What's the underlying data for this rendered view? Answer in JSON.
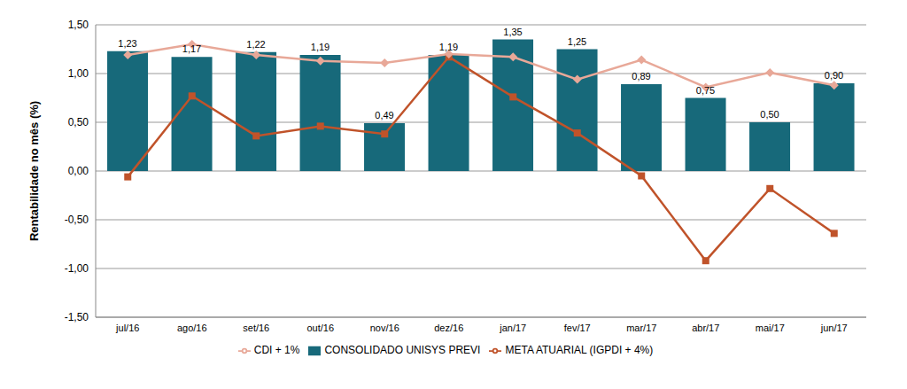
{
  "chart_data": {
    "type": "bar",
    "y_label": "Rentabilidade no mês (%)",
    "categories": [
      "jul/16",
      "ago/16",
      "set/16",
      "out/16",
      "nov/16",
      "dez/16",
      "jan/17",
      "fev/17",
      "mar/17",
      "abr/17",
      "mai/17",
      "jun/17"
    ],
    "series": [
      {
        "name": "CONSOLIDADO UNISYS PREVI",
        "type": "bar",
        "color": "#17697a",
        "data_labels": true,
        "values": [
          1.23,
          1.17,
          1.22,
          1.19,
          0.49,
          1.19,
          1.35,
          1.25,
          0.89,
          0.75,
          0.5,
          0.9
        ],
        "value_labels": [
          "1,23",
          "1,17",
          "1,22",
          "1,19",
          "0,49",
          "1,19",
          "1,35",
          "1,25",
          "0,89",
          "0,75",
          "0,50",
          "0,90"
        ]
      },
      {
        "name": "META ATUARIAL (IGPDI + 4%)",
        "type": "line",
        "color": "#c0532a",
        "marker": "square",
        "values": [
          -0.06,
          0.77,
          0.36,
          0.46,
          0.38,
          1.17,
          0.76,
          0.39,
          -0.05,
          -0.92,
          -0.18,
          -0.64
        ]
      },
      {
        "name": "CDI + 1%",
        "type": "line",
        "color": "#e8a898",
        "marker": "diamond",
        "values": [
          1.19,
          1.3,
          1.19,
          1.13,
          1.11,
          1.2,
          1.17,
          0.94,
          1.14,
          0.86,
          1.01,
          0.88
        ]
      }
    ],
    "ylim": [
      -1.5,
      1.5
    ],
    "yticks": [
      {
        "value": -1.5,
        "label": "-1,50"
      },
      {
        "value": -1.0,
        "label": "-1,00"
      },
      {
        "value": -0.5,
        "label": "-0,50"
      },
      {
        "value": 0,
        "label": "0,00"
      },
      {
        "value": 0.5,
        "label": "0,50"
      },
      {
        "value": 1.0,
        "label": "1,00"
      },
      {
        "value": 1.5,
        "label": "1,50"
      }
    ],
    "grid": true,
    "legend": "bottom"
  }
}
